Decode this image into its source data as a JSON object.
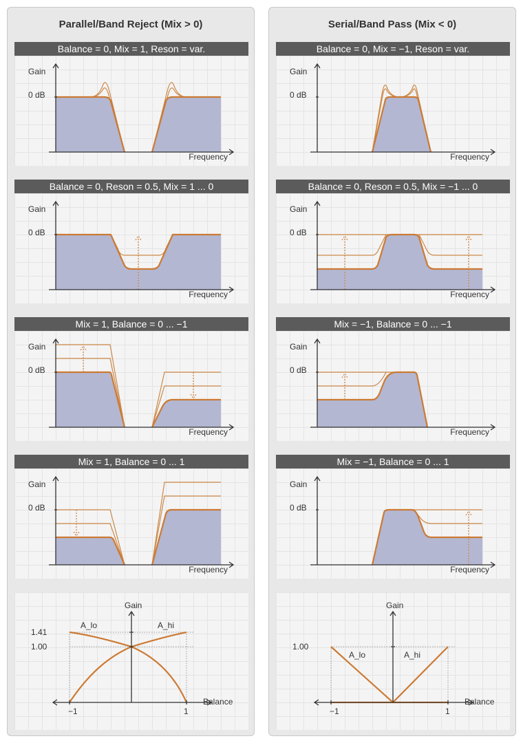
{
  "columns": {
    "left": {
      "title": "Parallel/Band Reject (Mix > 0)"
    },
    "right": {
      "title": "Serial/Band Pass (Mix < 0)"
    }
  },
  "axes": {
    "gain": "Gain",
    "zero_db": "0 dB",
    "frequency": "Frequency",
    "balance": "Balance"
  },
  "panels": {
    "left_1": "Balance = 0, Mix = 1, Reson = var.",
    "left_2": "Balance = 0, Reson = 0.5, Mix = 1 ... 0",
    "left_3": "Mix = 1, Balance = 0 ... −1",
    "left_4": "Mix = 1, Balance = 0 ... 1",
    "right_1": "Balance = 0, Mix = −1, Reson = var.",
    "right_2": "Balance = 0, Reson = 0.5, Mix = −1 ... 0",
    "right_3": "Mix = −1, Balance = 0 ... −1",
    "right_4": "Mix = −1, Balance = 0 ... 1"
  },
  "balance_plots": {
    "left": {
      "y_141": "1.41",
      "y_100": "1.00",
      "x_min": "−1",
      "x_max": "1",
      "curve_lo": "A_lo",
      "curve_hi": "A_hi"
    },
    "right": {
      "y_100": "1.00",
      "x_min": "−1",
      "x_max": "1",
      "curve_lo": "A_lo",
      "curve_hi": "A_hi"
    }
  },
  "colors": {
    "curve": "#cc7a33",
    "fill": "#b3b7d2",
    "header": "#5b5b5b",
    "panel": "#e8e8e8"
  }
}
